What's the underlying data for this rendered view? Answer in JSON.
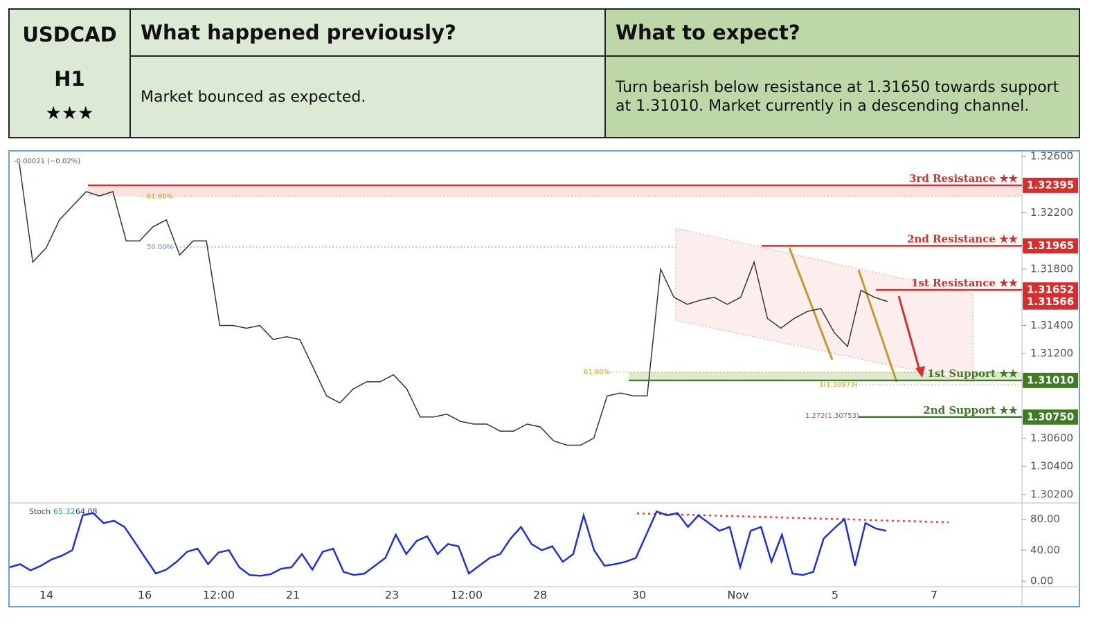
{
  "header": {
    "symbol": "USDCAD",
    "timeframe": "H1",
    "stars": "★★★",
    "col1_title": "What happened previously?",
    "col2_title": "What to expect?",
    "col1_text": "Market bounced as expected.",
    "col2_text": "Turn bearish below resistance at 1.31650 towards support at 1.31010. Market currently in a descending channel."
  },
  "chart_data": [
    {
      "type": "line",
      "change_label": "-0.00021 (−0.02%)",
      "x_labels": [
        "14",
        "16",
        "12:00",
        "21",
        "23",
        "12:00",
        "28",
        "30",
        "Nov",
        "5",
        "7"
      ],
      "series": [
        {
          "name": "USDCAD",
          "color": "#2b3a2b",
          "values": [
            1.3255,
            1.3185,
            1.3195,
            1.3215,
            1.3225,
            1.3235,
            1.3232,
            1.3235,
            1.32,
            1.32,
            1.321,
            1.3215,
            1.319,
            1.32,
            1.32,
            1.314,
            1.314,
            1.3138,
            1.314,
            1.313,
            1.3132,
            1.313,
            1.311,
            1.309,
            1.3085,
            1.3095,
            1.31,
            1.31,
            1.3105,
            1.3095,
            1.3075,
            1.3075,
            1.3077,
            1.3072,
            1.307,
            1.307,
            1.3065,
            1.3065,
            1.307,
            1.3068,
            1.3058,
            1.3055,
            1.3055,
            1.306,
            1.309,
            1.3092,
            1.309,
            1.309,
            1.318,
            1.316,
            1.3155,
            1.3158,
            1.316,
            1.3155,
            1.316,
            1.3185,
            1.3145,
            1.3138,
            1.3145,
            1.315,
            1.3152,
            1.3135,
            1.3125,
            1.3165,
            1.316,
            1.3157
          ]
        }
      ],
      "ylim": [
        1.3014,
        1.3264
      ],
      "yticks": [
        {
          "value": 1.326,
          "label": "1.32600"
        },
        {
          "value": 1.322,
          "label": "1.32200"
        },
        {
          "value": 1.318,
          "label": "1.31800"
        },
        {
          "value": 1.314,
          "label": "1.31400"
        },
        {
          "value": 1.312,
          "label": "1.31200"
        },
        {
          "value": 1.306,
          "label": "1.30600"
        },
        {
          "value": 1.304,
          "label": "1.30400"
        },
        {
          "value": 1.302,
          "label": "1.30200"
        }
      ],
      "levels": [
        {
          "name": "3rd Resistance ★★",
          "price": 1.32395,
          "color": "#d32f2f"
        },
        {
          "name": "2nd Resistance ★★",
          "price": 1.31965,
          "color": "#d32f2f"
        },
        {
          "name": "1st Resistance ★★",
          "price": 1.31652,
          "color": "#d32f2f"
        },
        {
          "name": "1st Support ★★",
          "price": {
            "value": 1.3101,
            "label": "1.31010"
          },
          "color": "#3f7a25"
        },
        {
          "name": "2nd Support ★★",
          "price": {
            "value": 1.3075,
            "label": "1.30750"
          },
          "color": "#3f7a25"
        }
      ],
      "last_price": 1.31566,
      "annotations": [
        "61.80%",
        "50.00%",
        "61.80%",
        "1(1.30973)",
        "1.272(1.30753)"
      ]
    },
    {
      "type": "line",
      "title": "Stoch",
      "stats": [
        65.32,
        64.08
      ],
      "series": [
        {
          "name": "Stoch",
          "color": "#1f2fd0",
          "values": [
            18,
            22,
            14,
            20,
            28,
            33,
            40,
            85,
            88,
            75,
            78,
            70,
            50,
            30,
            10,
            15,
            25,
            38,
            42,
            22,
            37,
            40,
            18,
            8,
            7,
            9,
            16,
            18,
            35,
            15,
            38,
            42,
            12,
            8,
            10,
            20,
            30,
            60,
            35,
            52,
            58,
            35,
            48,
            45,
            10,
            20,
            30,
            35,
            55,
            70,
            48,
            40,
            45,
            25,
            35,
            85,
            40,
            20,
            22,
            25,
            30,
            60,
            90,
            85,
            88,
            70,
            85,
            75,
            65,
            70,
            18,
            65,
            70,
            25,
            60,
            10,
            8,
            12,
            55,
            68,
            80,
            20,
            75,
            68,
            65
          ]
        }
      ],
      "ylim": [
        -7,
        101
      ],
      "yticks": [
        {
          "value": 80,
          "label": "80.00"
        },
        {
          "value": 40,
          "label": "40.00"
        },
        {
          "value": 0,
          "label": "0.00"
        }
      ]
    }
  ]
}
